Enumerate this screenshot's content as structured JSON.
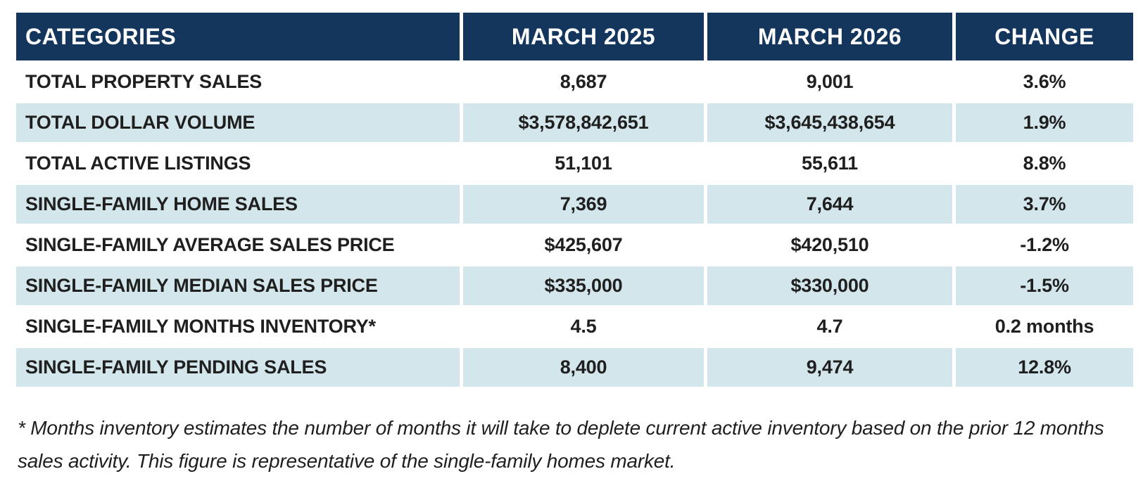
{
  "chart_data": {
    "type": "table",
    "title": "",
    "columns": [
      "CATEGORIES",
      "MARCH 2025",
      "MARCH 2026",
      "CHANGE"
    ],
    "rows": [
      {
        "category": "TOTAL PROPERTY SALES",
        "march_2025": "8,687",
        "march_2026": "9,001",
        "change": "3.6%"
      },
      {
        "category": "TOTAL DOLLAR VOLUME",
        "march_2025": "$3,578,842,651",
        "march_2026": "$3,645,438,654",
        "change": "1.9%"
      },
      {
        "category": "TOTAL ACTIVE LISTINGS",
        "march_2025": "51,101",
        "march_2026": "55,611",
        "change": "8.8%"
      },
      {
        "category": "SINGLE-FAMILY HOME SALES",
        "march_2025": "7,369",
        "march_2026": "7,644",
        "change": "3.7%"
      },
      {
        "category": "SINGLE-FAMILY AVERAGE SALES PRICE",
        "march_2025": "$425,607",
        "march_2026": "$420,510",
        "change": "-1.2%"
      },
      {
        "category": "SINGLE-FAMILY MEDIAN SALES PRICE",
        "march_2025": "$335,000",
        "march_2026": "$330,000",
        "change": "-1.5%"
      },
      {
        "category": "SINGLE-FAMILY MONTHS INVENTORY*",
        "march_2025": "4.5",
        "march_2026": "4.7",
        "change": "0.2 months"
      },
      {
        "category": "SINGLE-FAMILY PENDING SALES",
        "march_2025": "8,400",
        "march_2026": "9,474",
        "change": "12.8%"
      }
    ],
    "footnote": "* Months inventory estimates the number of months it will take to deplete current active inventory based on the prior 12 months sales activity. This figure is representative of the single-family homes market.",
    "layout": {
      "row_striping": "alternate even rows tinted",
      "header_position": "top"
    }
  },
  "colors": {
    "header_bg": "#14365c",
    "header_text": "#ffffff",
    "row_alt_bg": "#d3e6eb",
    "row_bg": "#ffffff",
    "body_text": "#1f1f1f"
  }
}
